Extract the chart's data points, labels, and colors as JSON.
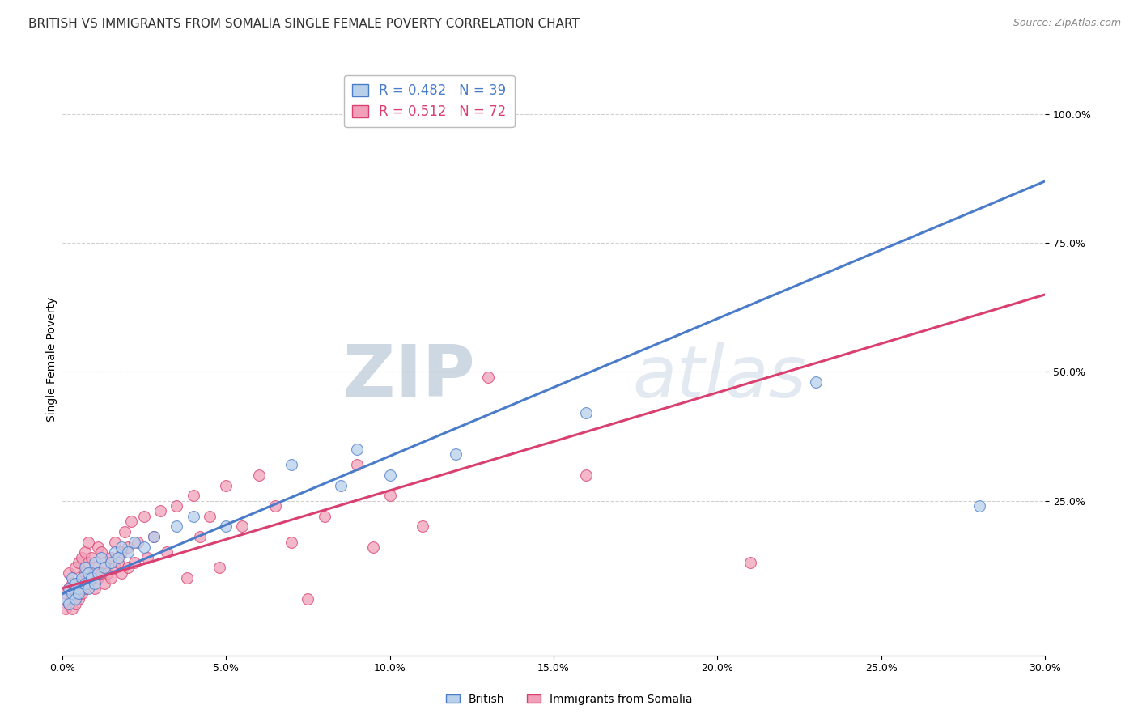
{
  "title": "BRITISH VS IMMIGRANTS FROM SOMALIA SINGLE FEMALE POVERTY CORRELATION CHART",
  "source": "Source: ZipAtlas.com",
  "ylabel": "Single Female Poverty",
  "xlim": [
    0.0,
    0.3
  ],
  "ylim": [
    -0.05,
    1.1
  ],
  "xtick_labels": [
    "0.0%",
    "5.0%",
    "10.0%",
    "15.0%",
    "20.0%",
    "25.0%",
    "30.0%"
  ],
  "xtick_values": [
    0.0,
    0.05,
    0.1,
    0.15,
    0.2,
    0.25,
    0.3
  ],
  "ytick_labels": [
    "25.0%",
    "50.0%",
    "75.0%",
    "100.0%"
  ],
  "ytick_values": [
    0.25,
    0.5,
    0.75,
    1.0
  ],
  "legend_entries": [
    {
      "label": "R = 0.482   N = 39"
    },
    {
      "label": "R = 0.512   N = 72"
    }
  ],
  "british_color": "#b8d0ea",
  "somalia_color": "#f0a0b8",
  "british_line_color": "#4a7cc9",
  "somalia_line_color": "#d94070",
  "watermark_zip": "ZIP",
  "watermark_atlas": "atlas",
  "british_scatter": [
    [
      0.001,
      0.06
    ],
    [
      0.002,
      0.08
    ],
    [
      0.002,
      0.05
    ],
    [
      0.003,
      0.07
    ],
    [
      0.003,
      0.1
    ],
    [
      0.004,
      0.06
    ],
    [
      0.004,
      0.09
    ],
    [
      0.005,
      0.08
    ],
    [
      0.005,
      0.07
    ],
    [
      0.006,
      0.1
    ],
    [
      0.007,
      0.09
    ],
    [
      0.007,
      0.12
    ],
    [
      0.008,
      0.08
    ],
    [
      0.008,
      0.11
    ],
    [
      0.009,
      0.1
    ],
    [
      0.01,
      0.09
    ],
    [
      0.01,
      0.13
    ],
    [
      0.011,
      0.11
    ],
    [
      0.012,
      0.14
    ],
    [
      0.013,
      0.12
    ],
    [
      0.015,
      0.13
    ],
    [
      0.016,
      0.15
    ],
    [
      0.017,
      0.14
    ],
    [
      0.018,
      0.16
    ],
    [
      0.02,
      0.15
    ],
    [
      0.022,
      0.17
    ],
    [
      0.025,
      0.16
    ],
    [
      0.028,
      0.18
    ],
    [
      0.035,
      0.2
    ],
    [
      0.04,
      0.22
    ],
    [
      0.05,
      0.2
    ],
    [
      0.07,
      0.32
    ],
    [
      0.085,
      0.28
    ],
    [
      0.09,
      0.35
    ],
    [
      0.1,
      0.3
    ],
    [
      0.12,
      0.34
    ],
    [
      0.16,
      0.42
    ],
    [
      0.23,
      0.48
    ],
    [
      0.28,
      0.24
    ]
  ],
  "somalia_scatter": [
    [
      0.001,
      0.04
    ],
    [
      0.001,
      0.07
    ],
    [
      0.002,
      0.05
    ],
    [
      0.002,
      0.08
    ],
    [
      0.002,
      0.11
    ],
    [
      0.003,
      0.04
    ],
    [
      0.003,
      0.06
    ],
    [
      0.003,
      0.09
    ],
    [
      0.004,
      0.05
    ],
    [
      0.004,
      0.08
    ],
    [
      0.004,
      0.12
    ],
    [
      0.005,
      0.06
    ],
    [
      0.005,
      0.09
    ],
    [
      0.005,
      0.13
    ],
    [
      0.006,
      0.07
    ],
    [
      0.006,
      0.1
    ],
    [
      0.006,
      0.14
    ],
    [
      0.007,
      0.08
    ],
    [
      0.007,
      0.11
    ],
    [
      0.007,
      0.15
    ],
    [
      0.008,
      0.09
    ],
    [
      0.008,
      0.13
    ],
    [
      0.008,
      0.17
    ],
    [
      0.009,
      0.1
    ],
    [
      0.009,
      0.14
    ],
    [
      0.01,
      0.08
    ],
    [
      0.01,
      0.12
    ],
    [
      0.011,
      0.1
    ],
    [
      0.011,
      0.16
    ],
    [
      0.012,
      0.11
    ],
    [
      0.012,
      0.15
    ],
    [
      0.013,
      0.09
    ],
    [
      0.013,
      0.13
    ],
    [
      0.014,
      0.11
    ],
    [
      0.015,
      0.1
    ],
    [
      0.015,
      0.14
    ],
    [
      0.016,
      0.12
    ],
    [
      0.016,
      0.17
    ],
    [
      0.017,
      0.13
    ],
    [
      0.018,
      0.11
    ],
    [
      0.018,
      0.15
    ],
    [
      0.019,
      0.19
    ],
    [
      0.02,
      0.12
    ],
    [
      0.02,
      0.16
    ],
    [
      0.021,
      0.21
    ],
    [
      0.022,
      0.13
    ],
    [
      0.023,
      0.17
    ],
    [
      0.025,
      0.22
    ],
    [
      0.026,
      0.14
    ],
    [
      0.028,
      0.18
    ],
    [
      0.03,
      0.23
    ],
    [
      0.032,
      0.15
    ],
    [
      0.035,
      0.24
    ],
    [
      0.038,
      0.1
    ],
    [
      0.04,
      0.26
    ],
    [
      0.042,
      0.18
    ],
    [
      0.045,
      0.22
    ],
    [
      0.048,
      0.12
    ],
    [
      0.05,
      0.28
    ],
    [
      0.055,
      0.2
    ],
    [
      0.06,
      0.3
    ],
    [
      0.065,
      0.24
    ],
    [
      0.07,
      0.17
    ],
    [
      0.075,
      0.06
    ],
    [
      0.08,
      0.22
    ],
    [
      0.09,
      0.32
    ],
    [
      0.095,
      0.16
    ],
    [
      0.1,
      0.26
    ],
    [
      0.11,
      0.2
    ],
    [
      0.13,
      0.49
    ],
    [
      0.16,
      0.3
    ],
    [
      0.21,
      0.13
    ]
  ],
  "british_line_pts": [
    [
      0.0,
      0.07
    ],
    [
      0.3,
      0.87
    ]
  ],
  "somalia_line_pts": [
    [
      0.0,
      0.08
    ],
    [
      0.3,
      0.65
    ]
  ],
  "title_fontsize": 11,
  "axis_label_fontsize": 10,
  "tick_fontsize": 9,
  "legend_fontsize": 12,
  "marker_size": 100,
  "background_color": "#ffffff",
  "plot_bg_color": "#ffffff",
  "grid_color": "#d0d0d0"
}
